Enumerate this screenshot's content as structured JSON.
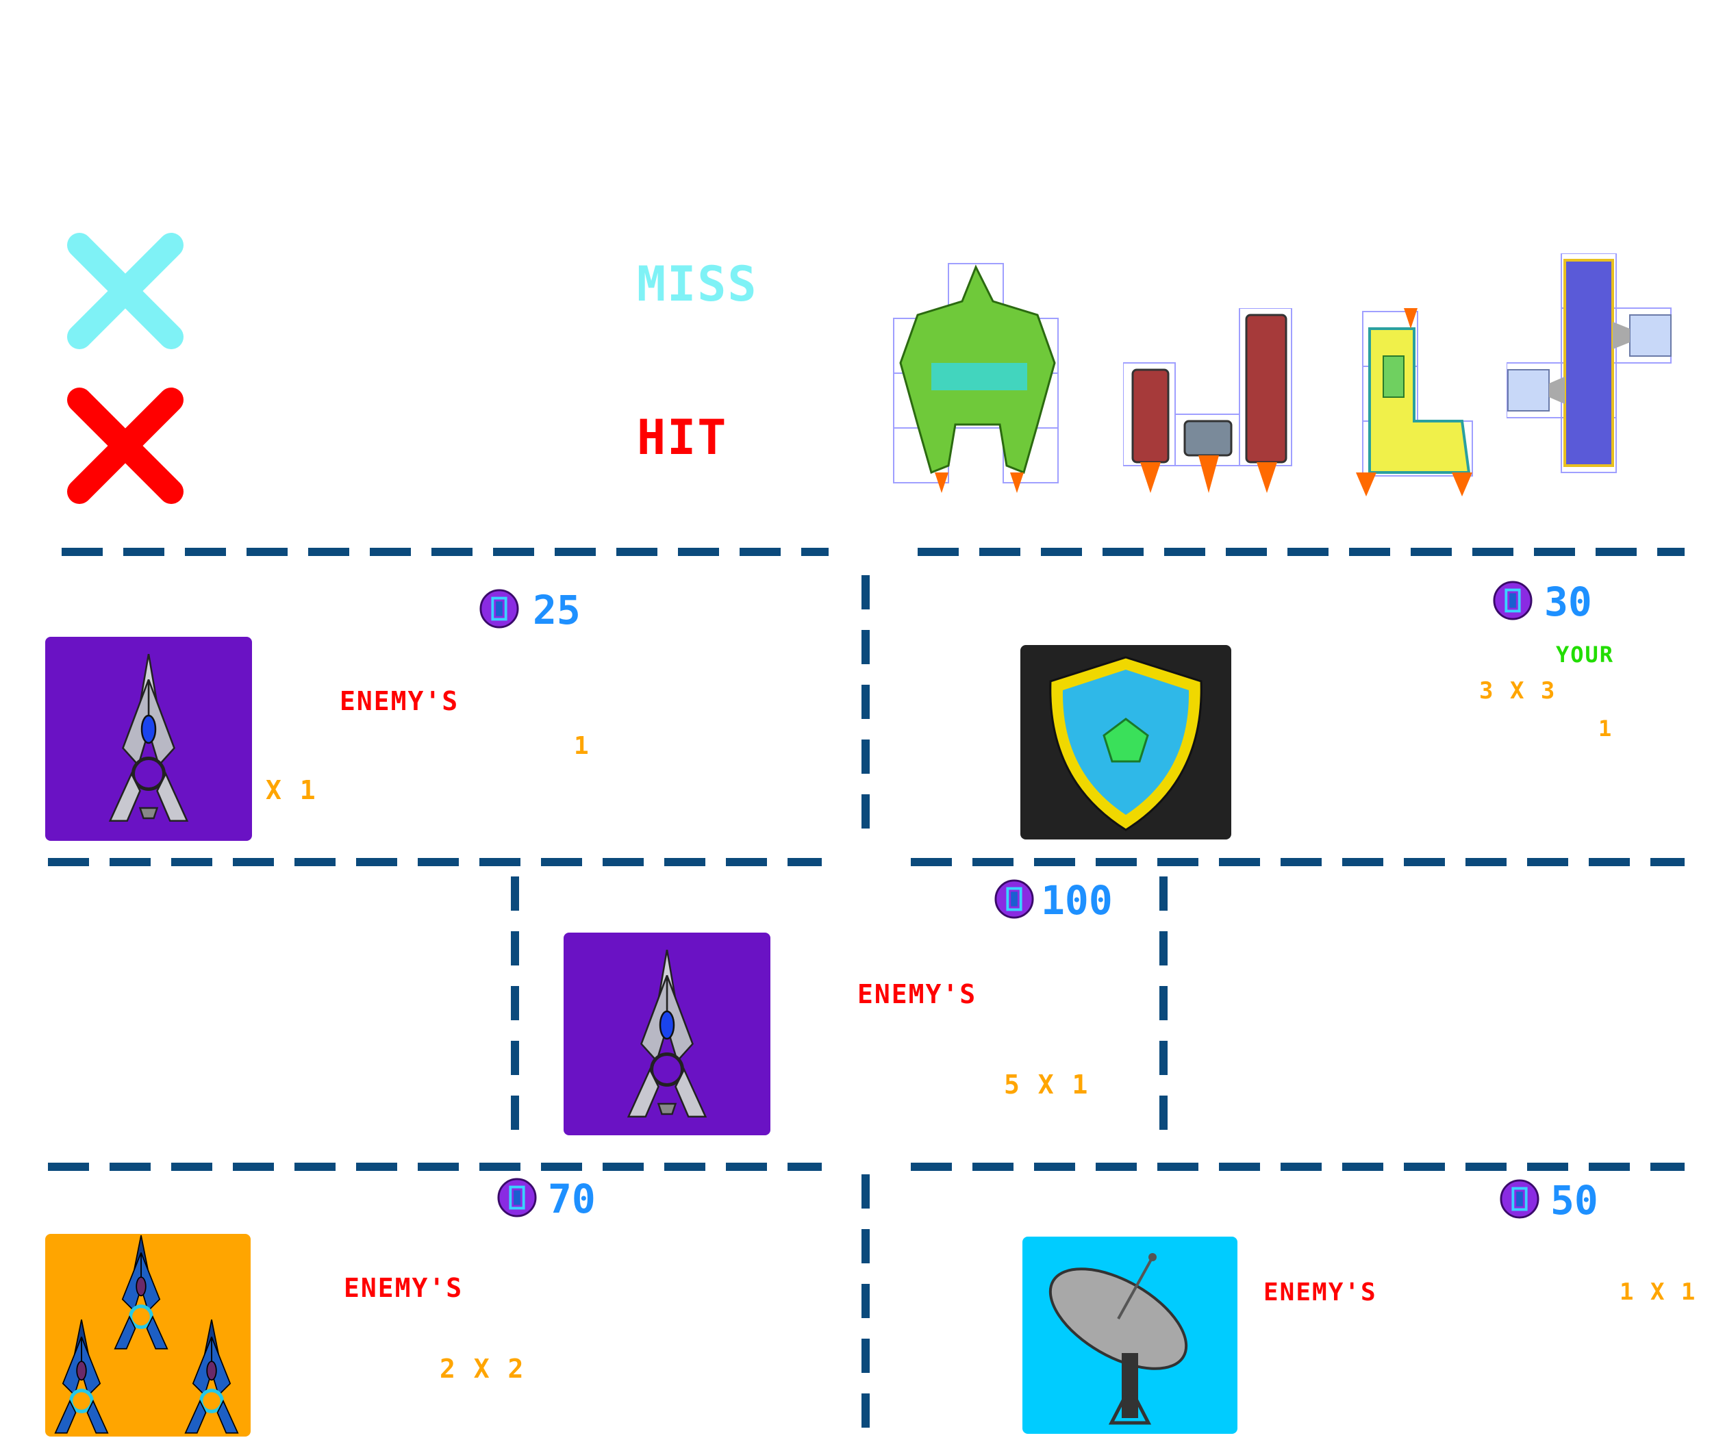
{
  "legend": {
    "miss": {
      "label": "MISS",
      "color": "#7ff2f6"
    },
    "hit": {
      "label": "HIT",
      "color": "#ff0000"
    }
  },
  "colors": {
    "divider": "#0b4a7c",
    "price": "#1e90ff",
    "enemy": "#ff0000",
    "your": "#22dd00",
    "size": "#ffa500",
    "coin": "#8a2be2"
  },
  "ships": [
    "green-mech-ship",
    "red-twin-ship",
    "yellow-l-ship",
    "blue-satellite-ship"
  ],
  "powerups": [
    {
      "id": "missile",
      "icon": "missile-icon",
      "price": "25",
      "owner": "ENEMY'S",
      "size": "X 1",
      "count": "1",
      "bg": "#6a12c4"
    },
    {
      "id": "shield",
      "icon": "shield-icon",
      "price": "30",
      "owner": "YOUR",
      "size": "3 X 3",
      "count": "1",
      "bg": "#222222"
    },
    {
      "id": "torpedo",
      "icon": "missile-icon",
      "price": "100",
      "owner": "ENEMY'S",
      "size": "5 X 1",
      "bg": "#6a12c4"
    },
    {
      "id": "cluster",
      "icon": "cluster-missile-icon",
      "price": "70",
      "owner": "ENEMY'S",
      "size": "2 X 2",
      "bg": "#ffa500"
    },
    {
      "id": "radar",
      "icon": "radar-dish-icon",
      "price": "50",
      "owner": "ENEMY'S",
      "size": "1 X 1",
      "bg": "#00ccff"
    }
  ]
}
